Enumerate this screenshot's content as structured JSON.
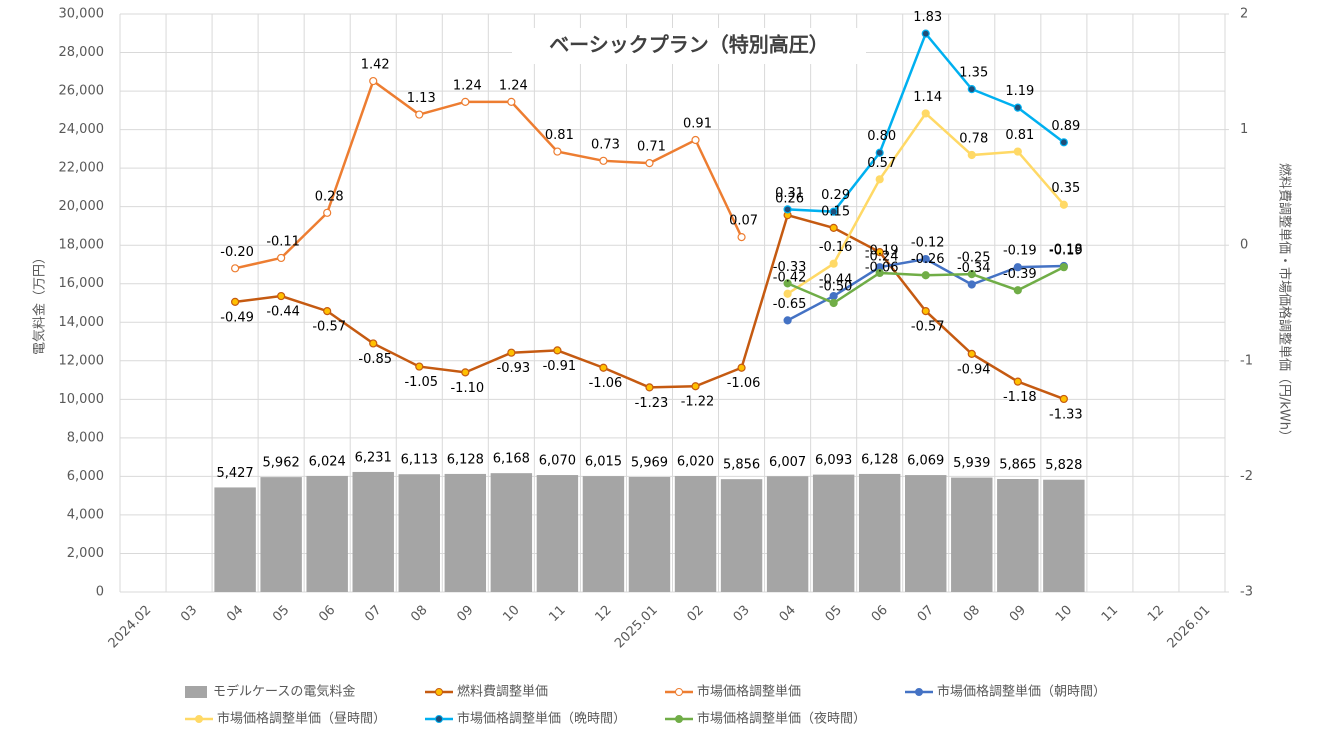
{
  "chart_data": {
    "type": "bar-line",
    "title": "ベーシックプラン（特別高圧）",
    "y_label": "電気料金（万円）",
    "y2_label": "燃料費調整単価・市場価格調整単価（円/kWh）",
    "categories": [
      "2024.02",
      "03",
      "04",
      "05",
      "06",
      "07",
      "08",
      "09",
      "10",
      "11",
      "12",
      "2025.01",
      "02",
      "03",
      "04",
      "05",
      "06",
      "07",
      "08",
      "09",
      "10",
      "11",
      "12",
      "2026.01"
    ],
    "ylim": [
      0,
      30000
    ],
    "yticks": [
      0,
      {
        "value": 2000,
        "label": "2,000"
      },
      {
        "value": 4000,
        "label": "4,000"
      },
      {
        "value": 6000,
        "label": "6,000"
      },
      {
        "value": 8000,
        "label": "8,000"
      },
      {
        "value": 10000,
        "label": "10,000"
      },
      {
        "value": 12000,
        "label": "12,000"
      },
      {
        "value": 14000,
        "label": "14,000"
      },
      {
        "value": 16000,
        "label": "16,000"
      },
      {
        "value": 18000,
        "label": "18,000"
      },
      {
        "value": 20000,
        "label": "20,000"
      },
      {
        "value": 22000,
        "label": "22,000"
      },
      {
        "value": 24000,
        "label": "24,000"
      },
      {
        "value": 26000,
        "label": "26,000"
      },
      {
        "value": 28000,
        "label": "28,000"
      },
      {
        "value": 30000,
        "label": "30,000"
      }
    ],
    "y2lim": [
      -3,
      2
    ],
    "y2ticks": [
      -3,
      -2,
      -1,
      0,
      1,
      2
    ],
    "grid": true,
    "series": [
      {
        "name": "モデルケースの電気料金",
        "type": "bar",
        "color": "#a5a5a5",
        "values": [
          null,
          null,
          5427,
          5962,
          6024,
          6231,
          6113,
          6128,
          6168,
          6070,
          6015,
          5969,
          6020,
          5856,
          6007,
          6093,
          6128,
          6069,
          5939,
          5865,
          5828,
          null,
          null,
          null
        ],
        "value_labels": [
          null,
          null,
          "5,427",
          "5,962",
          "6,024",
          "6,231",
          "6,113",
          "6,128",
          "6,168",
          "6,070",
          "6,015",
          "5,969",
          "6,020",
          "5,856",
          "6,007",
          "6,093",
          "6,128",
          "6,069",
          "5,939",
          "5,865",
          "5,828",
          null,
          null,
          null
        ]
      },
      {
        "name": "燃料費調整単価",
        "type": "line",
        "axis": "y2",
        "color": "#c55a11",
        "marker_fill": "#ffc000",
        "values": [
          null,
          null,
          -0.49,
          -0.44,
          -0.57,
          -0.85,
          -1.05,
          -1.1,
          -0.93,
          -0.91,
          -1.06,
          -1.23,
          -1.22,
          -1.06,
          0.26,
          0.15,
          -0.06,
          -0.57,
          -0.94,
          -1.18,
          -1.33,
          null,
          null,
          null
        ],
        "value_labels": [
          null,
          null,
          "-0.49",
          "-0.44",
          "-0.57",
          "-0.85",
          "-1.05",
          "-1.10",
          "-0.93",
          "-0.91",
          "-1.06",
          "-1.23",
          "-1.22",
          "-1.06",
          "0.26",
          "0.15",
          "-0.06",
          "-0.57",
          "-0.94",
          "-1.18",
          "-1.33",
          null,
          null,
          null
        ]
      },
      {
        "name": "市場価格調整単価",
        "type": "line",
        "axis": "y2",
        "color": "#ed7d31",
        "marker_fill": "#ffffff",
        "values": [
          null,
          null,
          -0.2,
          -0.11,
          0.28,
          1.42,
          1.13,
          1.24,
          1.24,
          0.81,
          0.73,
          0.71,
          0.91,
          0.07,
          null,
          null,
          null,
          null,
          null,
          null,
          null,
          null,
          null,
          null
        ],
        "value_labels": [
          null,
          null,
          "-0.20",
          "-0.11",
          "0.28",
          "1.42",
          "1.13",
          "1.24",
          "1.24",
          "0.81",
          "0.73",
          "0.71",
          "0.91",
          "0.07",
          null,
          null,
          null,
          null,
          null,
          null,
          null,
          null,
          null,
          null
        ]
      },
      {
        "name": "市場価格調整単価（朝時間）",
        "type": "line",
        "axis": "y2",
        "color": "#4472c4",
        "marker_fill": "#4472c4",
        "values": [
          null,
          null,
          null,
          null,
          null,
          null,
          null,
          null,
          null,
          null,
          null,
          null,
          null,
          null,
          -0.65,
          -0.44,
          -0.19,
          -0.12,
          -0.34,
          -0.19,
          -0.18,
          null,
          null,
          null
        ]
      },
      {
        "name": "市場価格調整単価（昼時間）",
        "type": "line",
        "axis": "y2",
        "color": "#ffd966",
        "marker_fill": "#ffd966",
        "values": [
          null,
          null,
          null,
          null,
          null,
          null,
          null,
          null,
          null,
          null,
          null,
          null,
          null,
          null,
          -0.42,
          -0.16,
          0.57,
          1.14,
          0.78,
          0.81,
          0.35,
          null,
          null,
          null
        ]
      },
      {
        "name": "市場価格調整単価（晩時間）",
        "type": "line",
        "axis": "y2",
        "color": "#00b0f0",
        "marker_fill": "#1f4e79",
        "values": [
          null,
          null,
          null,
          null,
          null,
          null,
          null,
          null,
          null,
          null,
          null,
          null,
          null,
          null,
          0.31,
          0.29,
          0.8,
          1.83,
          1.35,
          1.19,
          0.89,
          null,
          null,
          null
        ],
        "value_labels": [
          null,
          null,
          null,
          null,
          null,
          null,
          null,
          null,
          null,
          null,
          null,
          null,
          null,
          null,
          "0.31",
          "0.29",
          "0.80",
          "1.83",
          "1.35",
          "1.19",
          "0.89",
          null,
          null,
          null
        ]
      },
      {
        "name": "市場価格調整単価（夜時間）",
        "type": "line",
        "axis": "y2",
        "color": "#70ad47",
        "marker_fill": "#70ad47",
        "values": [
          null,
          null,
          null,
          null,
          null,
          null,
          null,
          null,
          null,
          null,
          null,
          null,
          null,
          null,
          -0.33,
          -0.5,
          -0.24,
          -0.26,
          -0.25,
          -0.39,
          -0.19,
          null,
          null,
          null
        ],
        "value_labels": [
          null,
          null,
          null,
          null,
          null,
          null,
          null,
          null,
          null,
          null,
          null,
          null,
          null,
          null,
          "-0.33",
          "-0.50",
          "-0.24",
          "-0.26",
          "-0.25",
          "-0.39",
          "-0.19",
          null,
          null,
          null
        ]
      }
    ]
  }
}
